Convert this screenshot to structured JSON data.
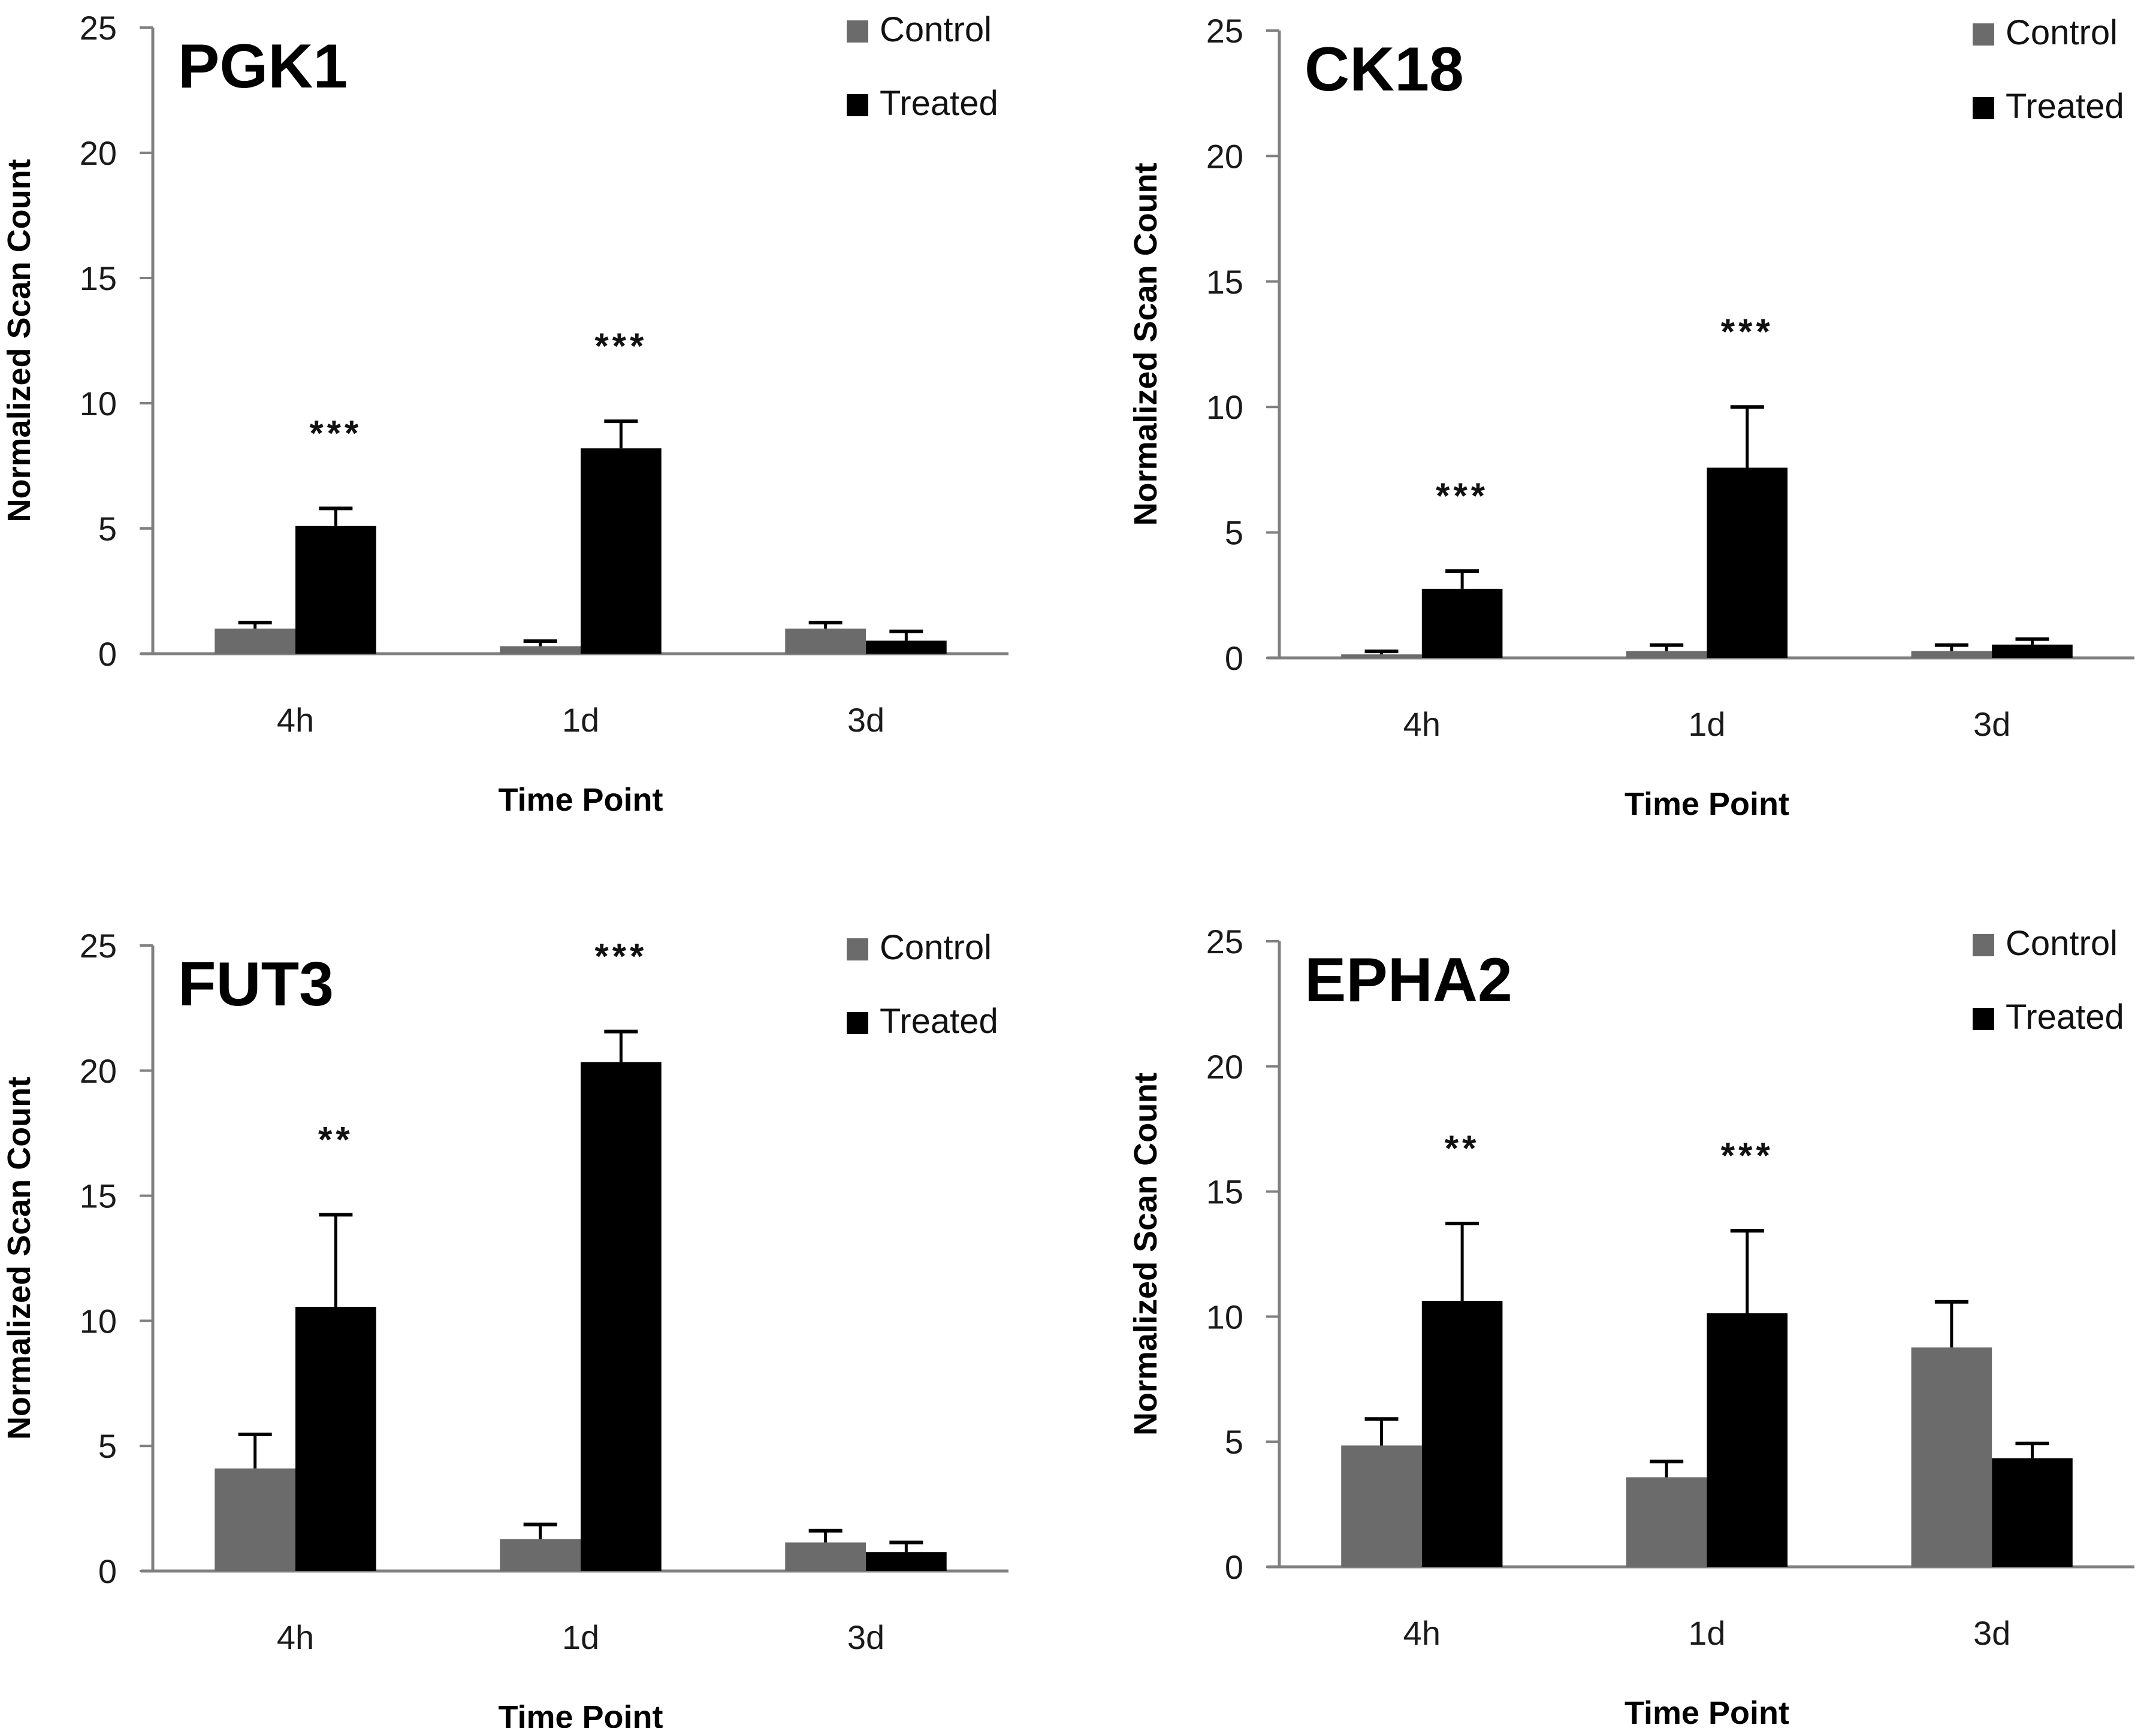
{
  "figure": {
    "legend": [
      {
        "name": "Control",
        "color": "#6b6b6b"
      },
      {
        "name": "Treated",
        "color": "#000000"
      }
    ],
    "axis_color": "#808080"
  },
  "chart_data": [
    {
      "type": "bar",
      "title": "PGK1",
      "xlabel": "Time Point",
      "ylabel": "Normalized Scan  Count",
      "categories": [
        "4h",
        "1d",
        "3d"
      ],
      "ylim": [
        0,
        25
      ],
      "yticks": [
        0,
        5,
        10,
        15,
        20,
        25
      ],
      "grid": false,
      "legend_position": "top-right",
      "series": [
        {
          "name": "Control",
          "values": [
            1.0,
            0.3,
            1.0
          ],
          "error": [
            0.24,
            0.2,
            0.24
          ]
        },
        {
          "name": "Treated",
          "values": [
            5.1,
            8.2,
            0.52
          ],
          "error": [
            0.7,
            1.08,
            0.37
          ]
        }
      ],
      "significance": [
        "***",
        "***",
        ""
      ]
    },
    {
      "type": "bar",
      "title": "CK18",
      "xlabel": "Time Point",
      "ylabel": "Normalized Scan  Count",
      "categories": [
        "4h",
        "1d",
        "3d"
      ],
      "ylim": [
        0,
        25
      ],
      "yticks": [
        0,
        5,
        10,
        15,
        20,
        25
      ],
      "grid": false,
      "legend_position": "top-right",
      "series": [
        {
          "name": "Control",
          "values": [
            0.14,
            0.27,
            0.27
          ],
          "error": [
            0.12,
            0.24,
            0.24
          ]
        },
        {
          "name": "Treated",
          "values": [
            2.75,
            7.58,
            0.53
          ],
          "error": [
            0.71,
            2.42,
            0.22
          ]
        }
      ],
      "significance": [
        "***",
        "***",
        ""
      ]
    },
    {
      "type": "bar",
      "title": "FUT3",
      "xlabel": "Time Point",
      "ylabel": "Normalized Scan  Count",
      "categories": [
        "4h",
        "1d",
        "3d"
      ],
      "ylim": [
        0,
        25
      ],
      "yticks": [
        0,
        5,
        10,
        15,
        20,
        25
      ],
      "grid": false,
      "legend_position": "top-right",
      "series": [
        {
          "name": "Control",
          "values": [
            4.1,
            1.27,
            1.14
          ],
          "error": [
            1.36,
            0.59,
            0.47
          ]
        },
        {
          "name": "Treated",
          "values": [
            10.56,
            20.34,
            0.76
          ],
          "error": [
            3.68,
            1.22,
            0.38
          ]
        }
      ],
      "significance": [
        "**",
        "***",
        ""
      ]
    },
    {
      "type": "bar",
      "title": "EPHA2",
      "xlabel": "Time Point",
      "ylabel": "Normalized Scan  Count",
      "categories": [
        "4h",
        "1d",
        "3d"
      ],
      "ylim": [
        0,
        25
      ],
      "yticks": [
        0,
        5,
        10,
        15,
        20,
        25
      ],
      "grid": false,
      "legend_position": "top-right",
      "series": [
        {
          "name": "Control",
          "values": [
            4.85,
            3.58,
            8.77
          ],
          "error": [
            1.06,
            0.63,
            1.82
          ]
        },
        {
          "name": "Treated",
          "values": [
            10.63,
            10.14,
            4.34
          ],
          "error": [
            3.09,
            3.29,
            0.59
          ]
        }
      ],
      "significance": [
        "**",
        "***",
        ""
      ]
    }
  ]
}
